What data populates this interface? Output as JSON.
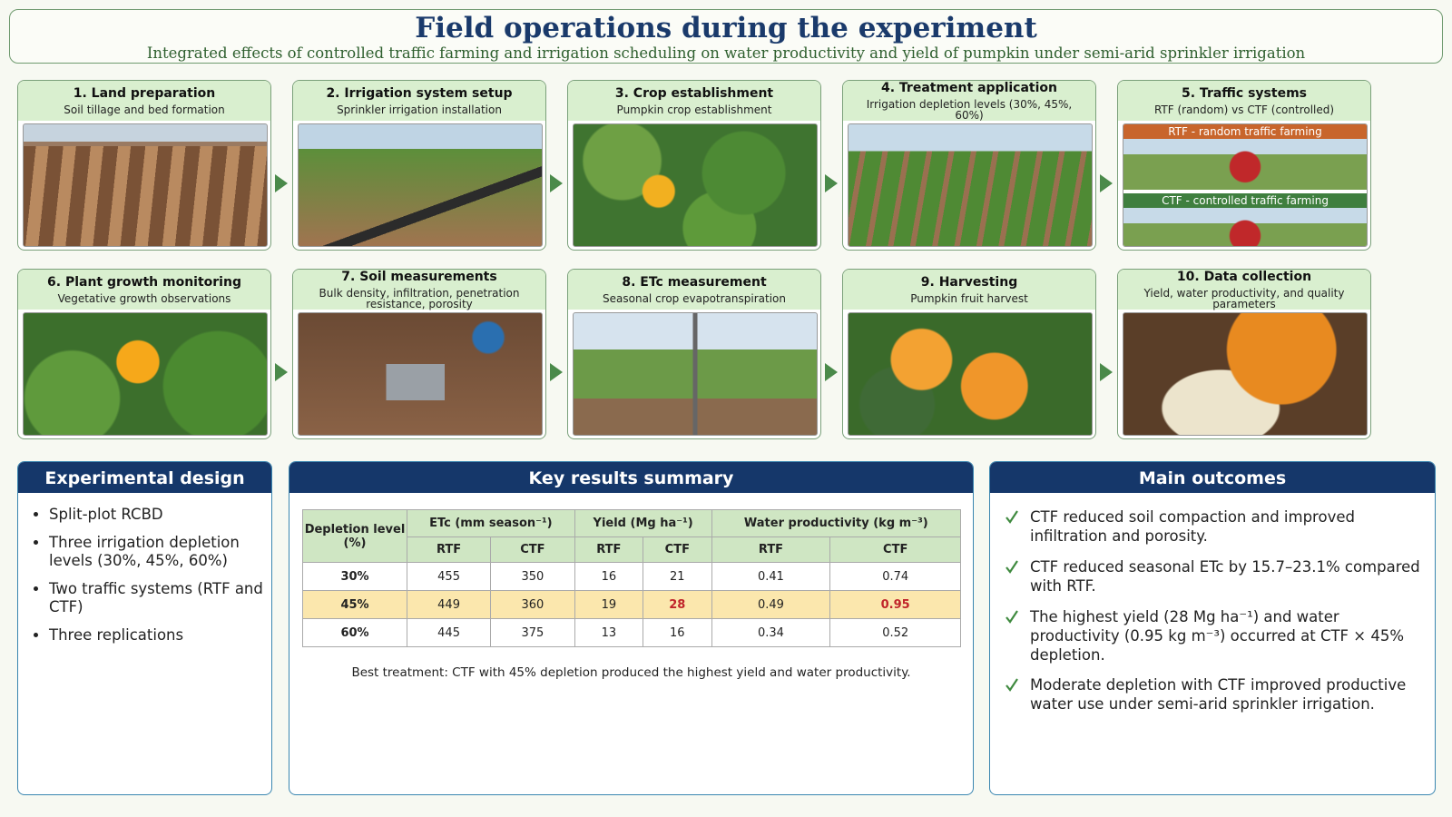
{
  "header": {
    "title": "Field operations during the experiment",
    "subtitle": "Integrated effects of controlled traffic farming and irrigation scheduling on water productivity and yield of pumpkin under semi-arid sprinkler irrigation"
  },
  "steps": [
    {
      "title": "1. Land preparation",
      "subtitle": "Soil tillage and bed formation"
    },
    {
      "title": "2. Irrigation system setup",
      "subtitle": "Sprinkler irrigation installation"
    },
    {
      "title": "3. Crop establishment",
      "subtitle": "Pumpkin crop establishment"
    },
    {
      "title": "4. Treatment application",
      "subtitle": "Irrigation depletion levels (30%, 45%, 60%)"
    },
    {
      "title": "5. Traffic systems",
      "subtitle": "RTF (random) vs CTF (controlled)",
      "labels": [
        "RTF - random traffic farming",
        "CTF - controlled traffic farming"
      ]
    },
    {
      "title": "6. Plant growth monitoring",
      "subtitle": "Vegetative growth observations"
    },
    {
      "title": "7. Soil measurements",
      "subtitle": "Bulk density, infiltration, penetration resistance, porosity"
    },
    {
      "title": "8. ETc measurement",
      "subtitle": "Seasonal crop evapotranspiration"
    },
    {
      "title": "9. Harvesting",
      "subtitle": "Pumpkin fruit harvest"
    },
    {
      "title": "10. Data collection",
      "subtitle": "Yield, water productivity, and quality parameters"
    }
  ],
  "experimental_design": {
    "title": "Experimental design",
    "items": [
      "Split-plot RCBD",
      "Three irrigation depletion levels (30%, 45%, 60%)",
      "Two traffic systems (RTF and CTF)",
      "Three replications"
    ]
  },
  "key_results": {
    "title": "Key results summary",
    "table": {
      "header": [
        "Depletion level (%)",
        "ETc (mm season⁻¹)",
        "Yield (Mg ha⁻¹)",
        "Water productivity (kg m⁻³)"
      ],
      "subheader": [
        "RTF",
        "CTF",
        "RTF",
        "CTF",
        "RTF",
        "CTF"
      ],
      "rows": [
        [
          "30%",
          455,
          350,
          16,
          21,
          0.41,
          0.74
        ],
        [
          "45%",
          449,
          360,
          19,
          28,
          0.49,
          0.95
        ],
        [
          "60%",
          445,
          375,
          13,
          16,
          0.34,
          0.52
        ]
      ]
    },
    "note": "Best treatment: CTF with 45% depletion produced the highest yield and water productivity."
  },
  "main_outcomes": {
    "title": "Main outcomes",
    "items": [
      "CTF reduced soil compaction and improved infiltration and porosity.",
      "CTF reduced seasonal ETc by 15.7–23.1% compared with RTF.",
      "The highest yield (28 Mg ha⁻¹) and water productivity (0.95 kg m⁻³) occurred at CTF × 45% depletion.",
      "Moderate depletion with CTF improved productive water use under semi-arid sprinkler irrigation."
    ]
  }
}
